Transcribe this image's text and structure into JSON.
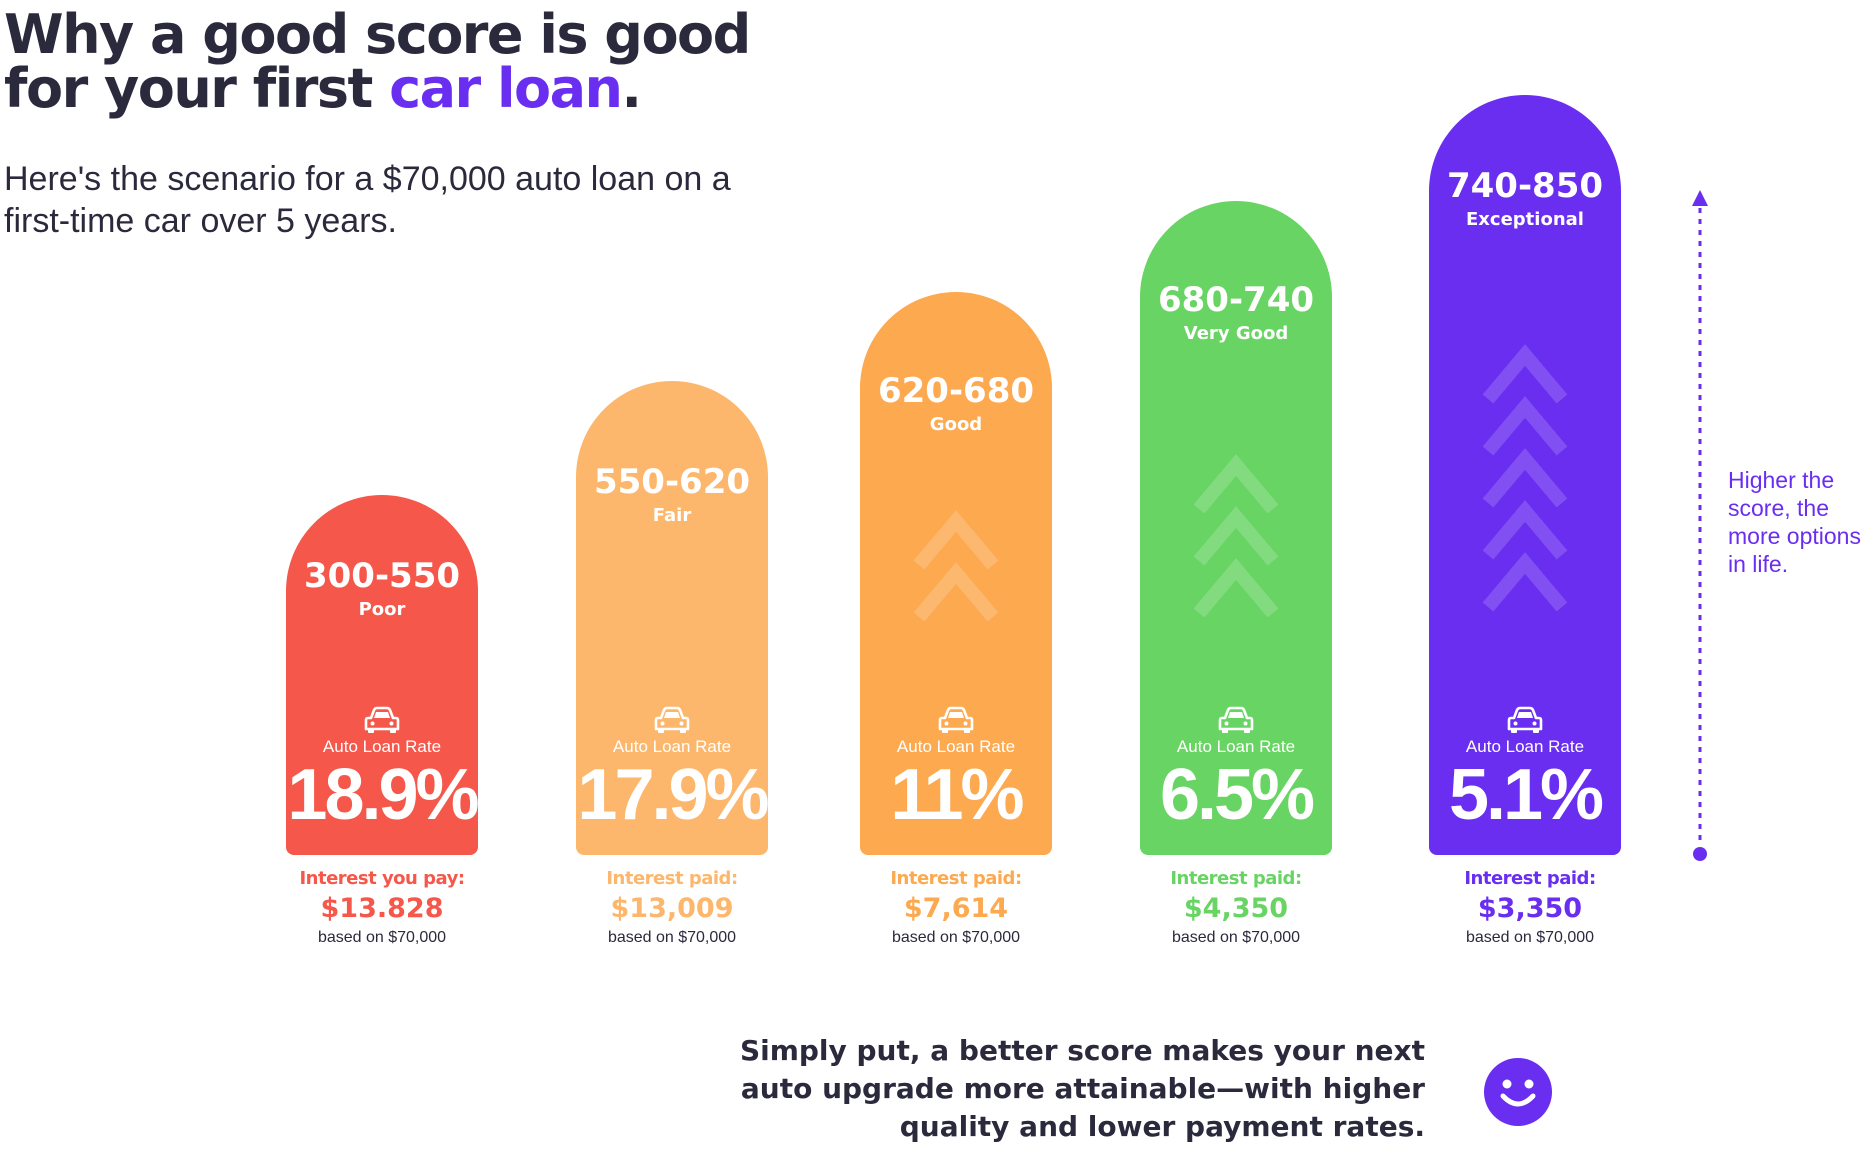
{
  "header": {
    "title_line1": "Why a good score is good",
    "title_line2_pre": "for your first ",
    "title_line2_accent": "car loan",
    "title_line2_post": ".",
    "subtitle": "Here's the scenario for a $70,000 auto loan on a first-time car over 5 years."
  },
  "tiers": [
    {
      "range": "300-550",
      "tier": "Poor",
      "rate_label": "Auto Loan Rate",
      "rate": "18.9%",
      "interest_label": "Interest you pay:",
      "interest": "$13.828",
      "basis": "based on $70,000"
    },
    {
      "range": "550-620",
      "tier": "Fair",
      "rate_label": "Auto Loan Rate",
      "rate": "17.9%",
      "interest_label": "Interest paid:",
      "interest": "$13,009",
      "basis": "based on $70,000"
    },
    {
      "range": "620-680",
      "tier": "Good",
      "rate_label": "Auto Loan Rate",
      "rate": "11%",
      "interest_label": "Interest paid:",
      "interest": "$7,614",
      "basis": "based on $70,000"
    },
    {
      "range": "680-740",
      "tier": "Very Good",
      "rate_label": "Auto Loan Rate",
      "rate": "6.5%",
      "interest_label": "Interest paid:",
      "interest": "$4,350",
      "basis": "based on $70,000"
    },
    {
      "range": "740-850",
      "tier": "Exceptional",
      "rate_label": "Auto Loan Rate",
      "rate": "5.1%",
      "interest_label": "Interest paid:",
      "interest": "$3,350",
      "basis": "based on $70,000"
    }
  ],
  "side_note": "Higher the score, the more options in life.",
  "bottom_text": "Simply put, a better score makes your next auto upgrade more attainable—with higher quality and lower payment rates.",
  "colors": {
    "poor": "#f5574a",
    "fair": "#fcb76c",
    "good": "#fca94f",
    "very_good": "#68d463",
    "exceptional": "#6a2ef0",
    "text_dark": "#2b2a3d",
    "accent": "#6a2ef0"
  },
  "icons": [
    "car-icon",
    "chevron-up-icon",
    "arrow-up-icon",
    "smiley-icon"
  ]
}
